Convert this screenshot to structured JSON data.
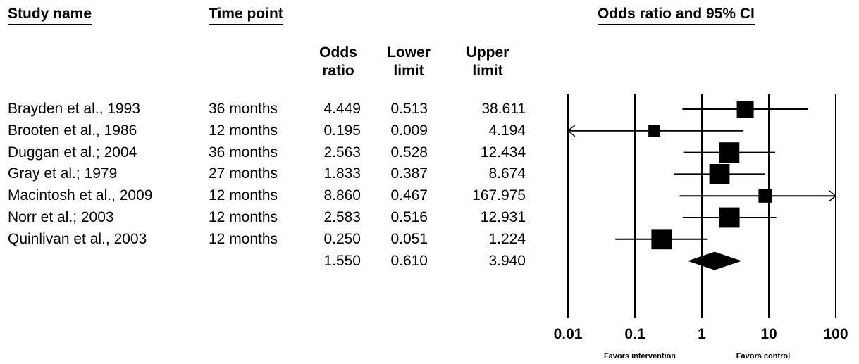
{
  "headers": {
    "study_name": "Study name",
    "time_point": "Time point",
    "plot_title": "Odds ratio and 95% CI"
  },
  "columns": {
    "odds_ratio": [
      "Odds",
      "ratio"
    ],
    "lower_limit": [
      "Lower",
      "limit"
    ],
    "upper_limit": [
      "Upper",
      "limit"
    ]
  },
  "chart_data": {
    "type": "forest",
    "title": "Odds ratio and 95% CI",
    "x_scale": "log",
    "xlim": [
      0.01,
      100
    ],
    "x_ticks": [
      "0.01",
      "0.1",
      "1",
      "10",
      "100"
    ],
    "x_tick_values": [
      0.01,
      0.1,
      1,
      10,
      100
    ],
    "reference_value": 1,
    "favor_labels": [
      "Favors intervention",
      "Favors control"
    ],
    "studies": [
      {
        "name": "Brayden et al., 1993",
        "time": "36 months",
        "or": 4.449,
        "or_text": "4.449",
        "lower": 0.513,
        "lower_text": "0.513",
        "upper": 38.611,
        "upper_text": "38.611",
        "weight": 1.0
      },
      {
        "name": "Brooten et al., 1986",
        "time": "12 months",
        "or": 0.195,
        "or_text": "0.195",
        "lower": 0.009,
        "lower_text": "0.009",
        "upper": 4.194,
        "upper_text": "4.194",
        "weight": 0.7
      },
      {
        "name": "Duggan et al.; 2004",
        "time": "36 months",
        "or": 2.563,
        "or_text": "2.563",
        "lower": 0.528,
        "lower_text": "0.528",
        "upper": 12.434,
        "upper_text": "12.434",
        "weight": 1.2
      },
      {
        "name": "Gray et al.; 1979",
        "time": "27 months",
        "or": 1.833,
        "or_text": "1.833",
        "lower": 0.387,
        "lower_text": "0.387",
        "upper": 8.674,
        "upper_text": "8.674",
        "weight": 1.2
      },
      {
        "name": "Macintosh et al., 2009",
        "time": "12 months",
        "or": 8.86,
        "or_text": "8.860",
        "lower": 0.467,
        "lower_text": "0.467",
        "upper": 167.975,
        "upper_text": "167.975",
        "weight": 0.8
      },
      {
        "name": "Norr et al.; 2003",
        "time": "12 months",
        "or": 2.583,
        "or_text": "2.583",
        "lower": 0.516,
        "lower_text": "0.516",
        "upper": 12.931,
        "upper_text": "12.931",
        "weight": 1.2
      },
      {
        "name": "Quinlivan et al., 2003",
        "time": "12 months",
        "or": 0.25,
        "or_text": "0.250",
        "lower": 0.051,
        "lower_text": "0.051",
        "upper": 1.224,
        "upper_text": "1.224",
        "weight": 1.2
      }
    ],
    "summary": {
      "or": 1.55,
      "or_text": "1.550",
      "lower": 0.61,
      "lower_text": "0.610",
      "upper": 3.94,
      "upper_text": "3.940"
    }
  }
}
